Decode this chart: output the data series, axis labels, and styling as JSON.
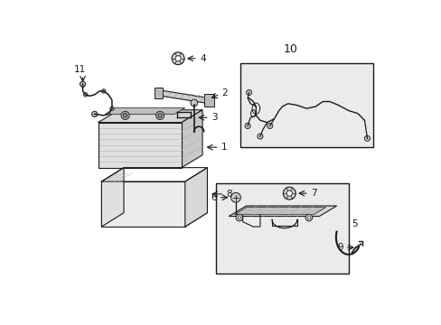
{
  "bg_color": "#ffffff",
  "line_color": "#1a1a1a",
  "fig_width": 4.89,
  "fig_height": 3.6,
  "dpi": 100,
  "gray_box": "#ebebeb",
  "gray_fill": "#e0e0e0",
  "mid_gray": "#c8c8c8",
  "dark_gray": "#aaaaaa"
}
